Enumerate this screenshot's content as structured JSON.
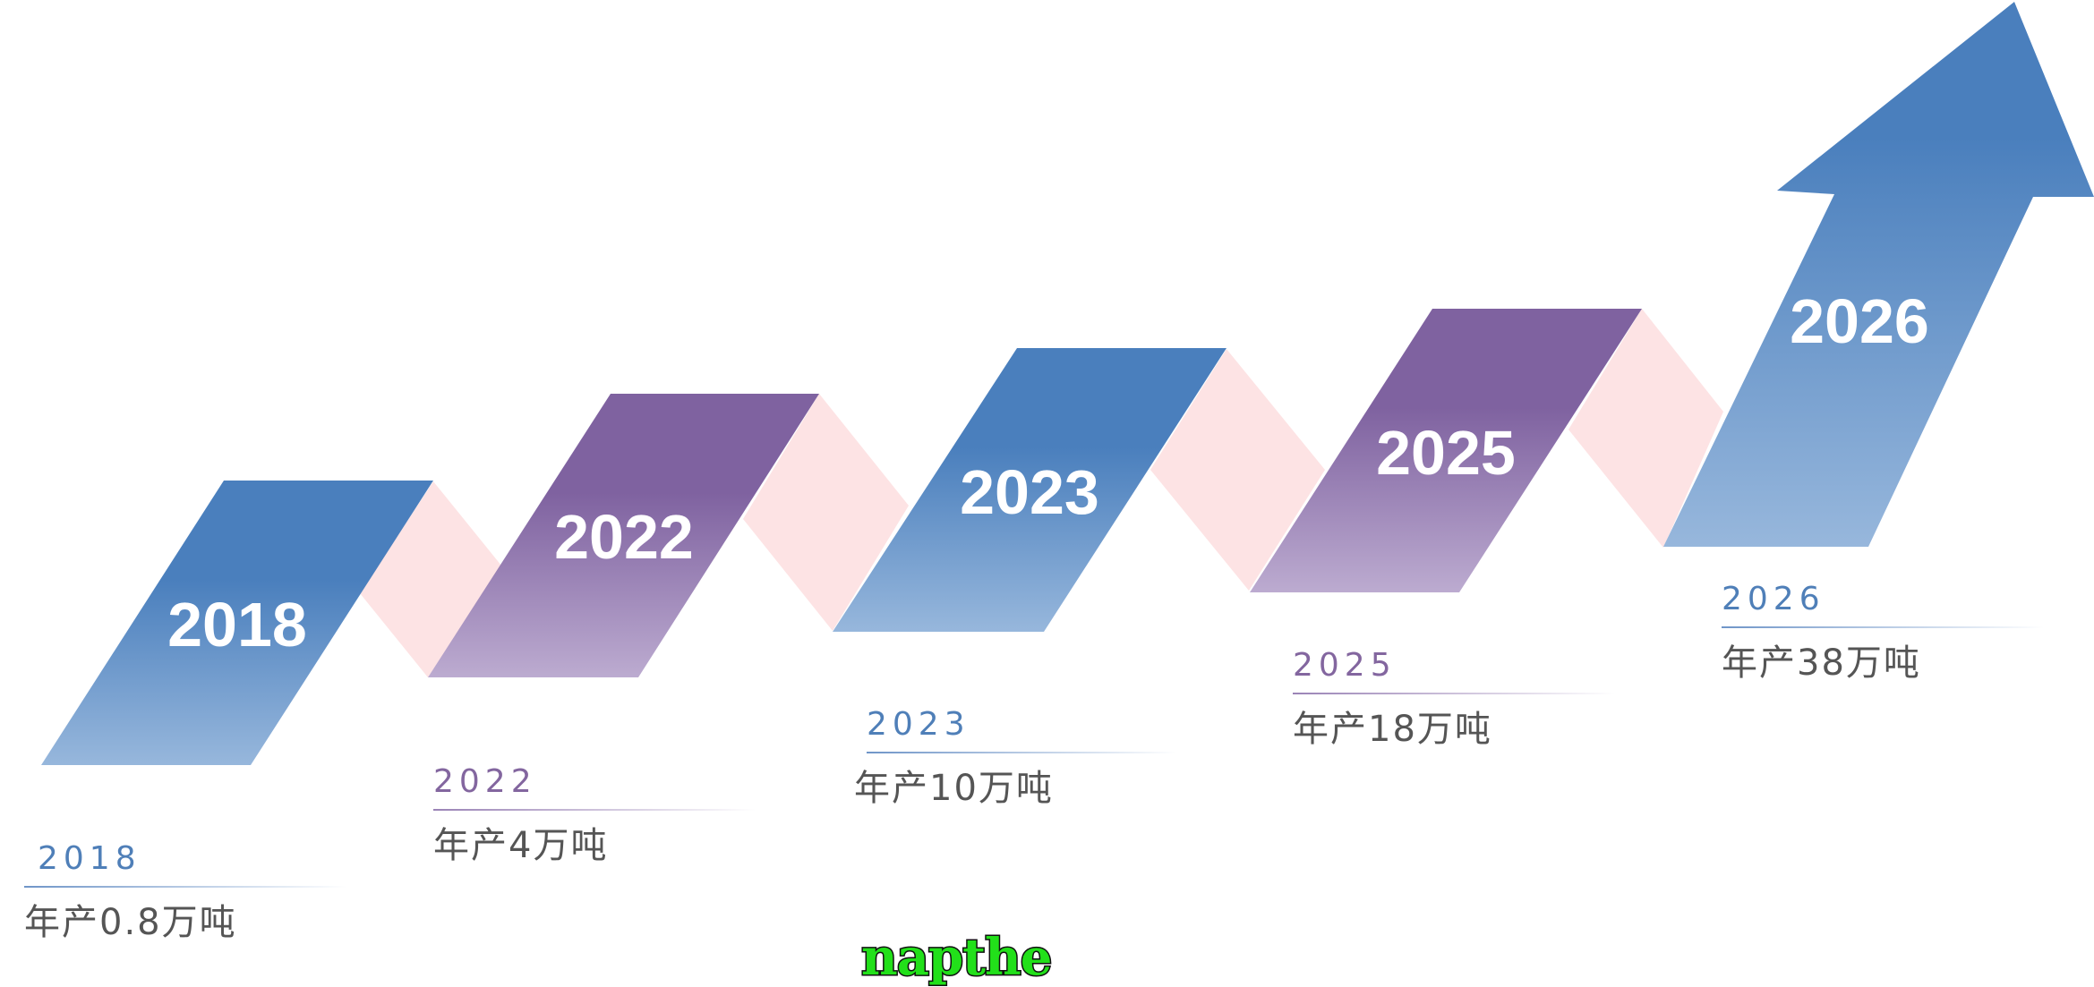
{
  "colors": {
    "blue_top": "#4a7fbd",
    "blue_bottom": "#93b4da",
    "purple_top": "#7f62a0",
    "purple_bottom": "#b8a5cc",
    "connector_pink": "#fde3e4",
    "caption_text": "#555555"
  },
  "steps": [
    {
      "year": "2018",
      "color": "blue"
    },
    {
      "year": "2022",
      "color": "purple"
    },
    {
      "year": "2023",
      "color": "blue"
    },
    {
      "year": "2025",
      "color": "purple"
    },
    {
      "year": "2026",
      "color": "blue"
    }
  ],
  "captions": [
    {
      "year": "2018",
      "text": "年产0.8万吨",
      "color": "blue"
    },
    {
      "year": "2022",
      "text": "年产4万吨",
      "color": "purple"
    },
    {
      "year": "2023",
      "text": "年产10万吨",
      "color": "blue"
    },
    {
      "year": "2025",
      "text": "年产18万吨",
      "color": "purple"
    },
    {
      "year": "2026",
      "text": "年产38万吨",
      "color": "blue"
    }
  ],
  "watermark": "napthe"
}
